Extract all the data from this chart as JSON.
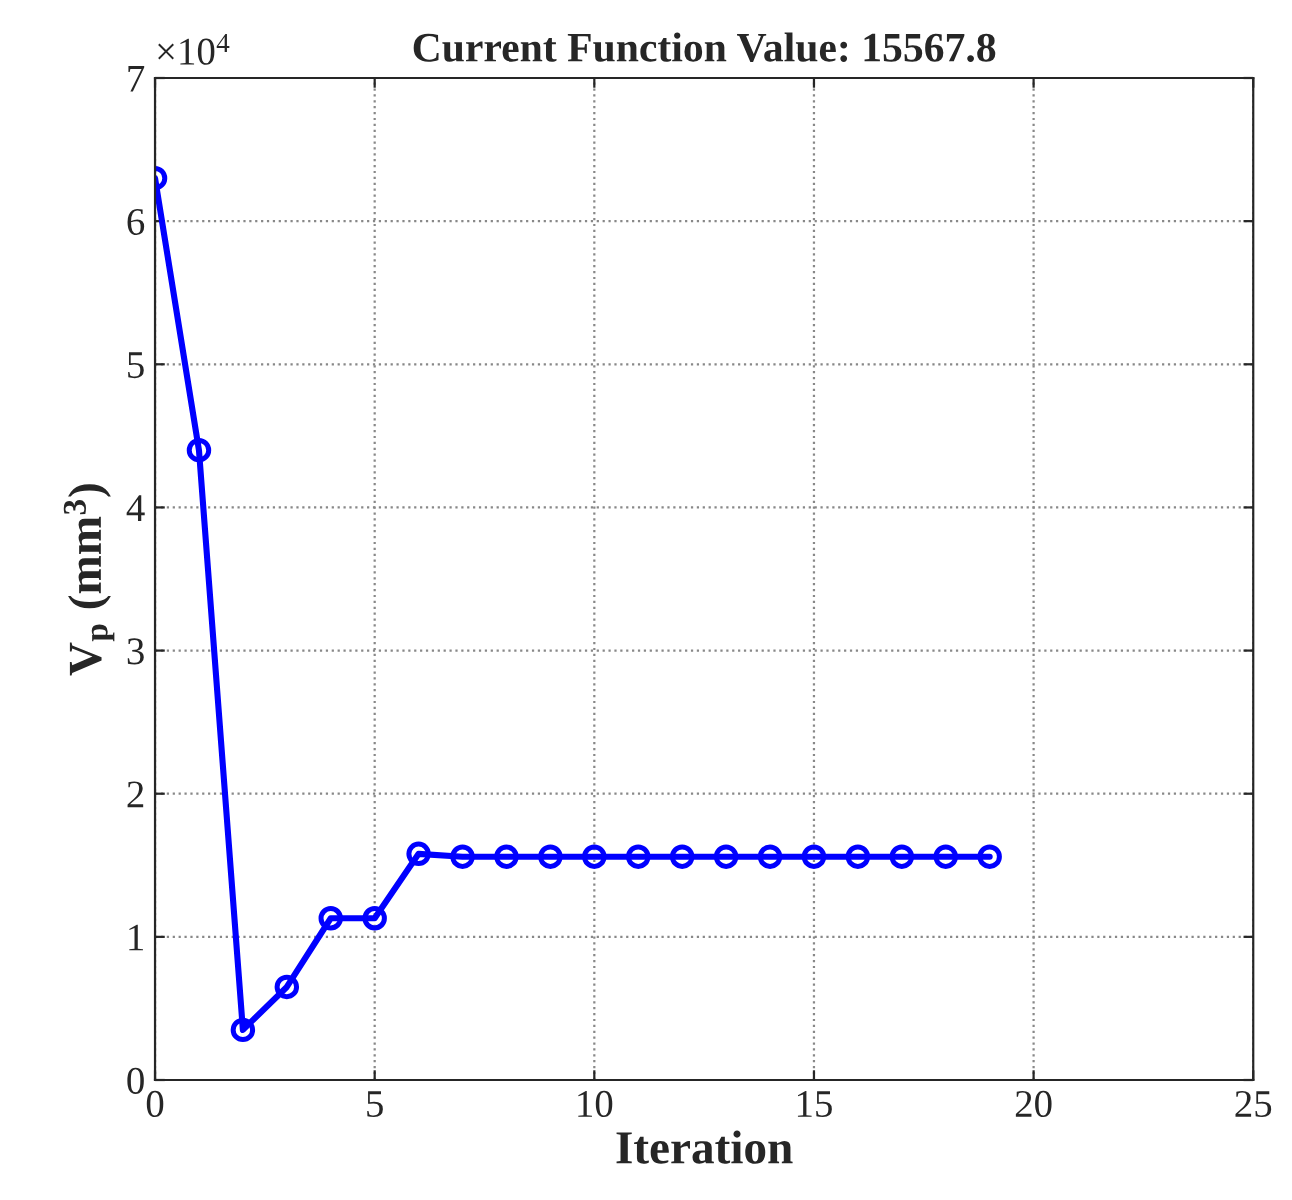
{
  "chart_data": {
    "type": "line",
    "title": "Current Function Value: 15567.8",
    "xlabel": "Iteration",
    "ylabel": "V$_{p}$ (mm$^{3}$)",
    "x": [
      0,
      1,
      2,
      3,
      4,
      5,
      6,
      7,
      8,
      9,
      10,
      11,
      12,
      13,
      14,
      15,
      16,
      17,
      18,
      19
    ],
    "series": [
      {
        "color": "#0000ff",
        "values": [
          6.3,
          4.4,
          0.35,
          0.65,
          1.13,
          1.13,
          1.58,
          1.56,
          1.56,
          1.56,
          1.56,
          1.56,
          1.56,
          1.56,
          1.56,
          1.56,
          1.56,
          1.56,
          1.56,
          1.56
        ]
      }
    ],
    "xlim": [
      0,
      25
    ],
    "xticks": [
      0,
      5,
      10,
      15,
      20,
      25
    ],
    "ylim": [
      0,
      7
    ],
    "yticks": [
      0,
      1,
      2,
      3,
      4,
      5,
      6,
      7
    ],
    "annotations": [
      "×10$^{4}$"
    ],
    "grid": true,
    "marker": "circle",
    "line_style": "solid",
    "legend": false
  }
}
